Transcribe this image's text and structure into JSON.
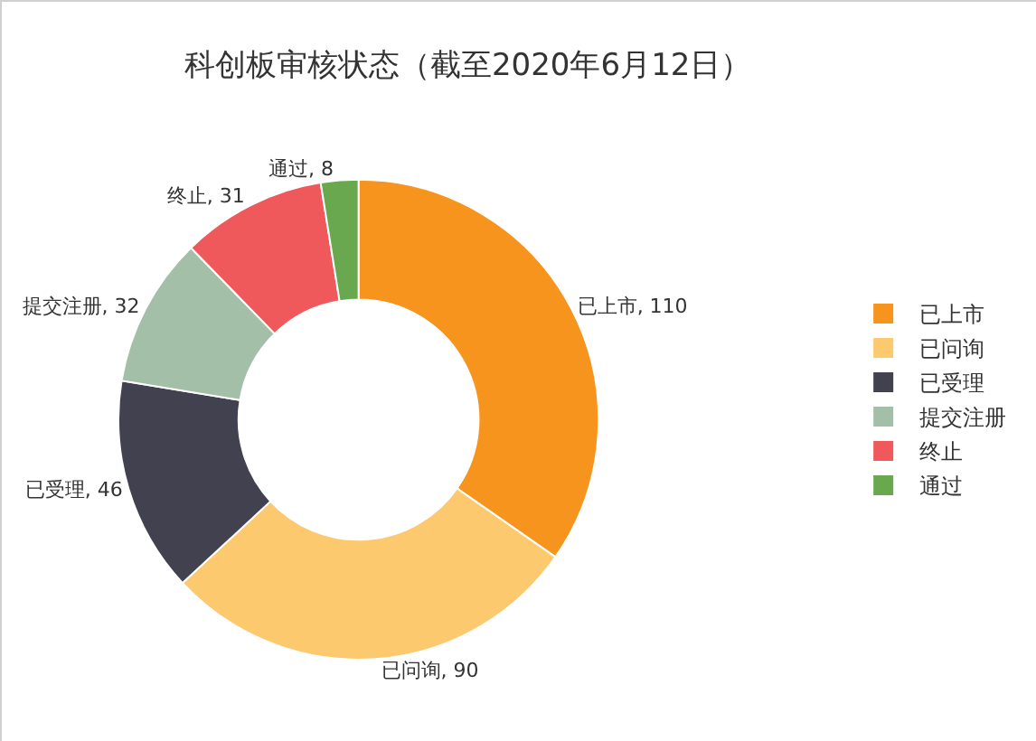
{
  "chart_data": {
    "type": "donut",
    "title": "科创板审核状态（截至2020年6月12日）",
    "categories": [
      "已上市",
      "已问询",
      "已受理",
      "提交注册",
      "终止",
      "通过"
    ],
    "values": [
      110,
      90,
      46,
      32,
      31,
      8
    ],
    "colors": [
      "#f7941d",
      "#fdc96f",
      "#41414f",
      "#a3bfa8",
      "#f0595b",
      "#6aa84f"
    ],
    "value_labels": [
      "已上市, 110",
      "已问询, 90",
      "已受理, 46",
      "提交注册, 32",
      "终止, 31",
      "通过, 8"
    ],
    "legend": "right"
  }
}
